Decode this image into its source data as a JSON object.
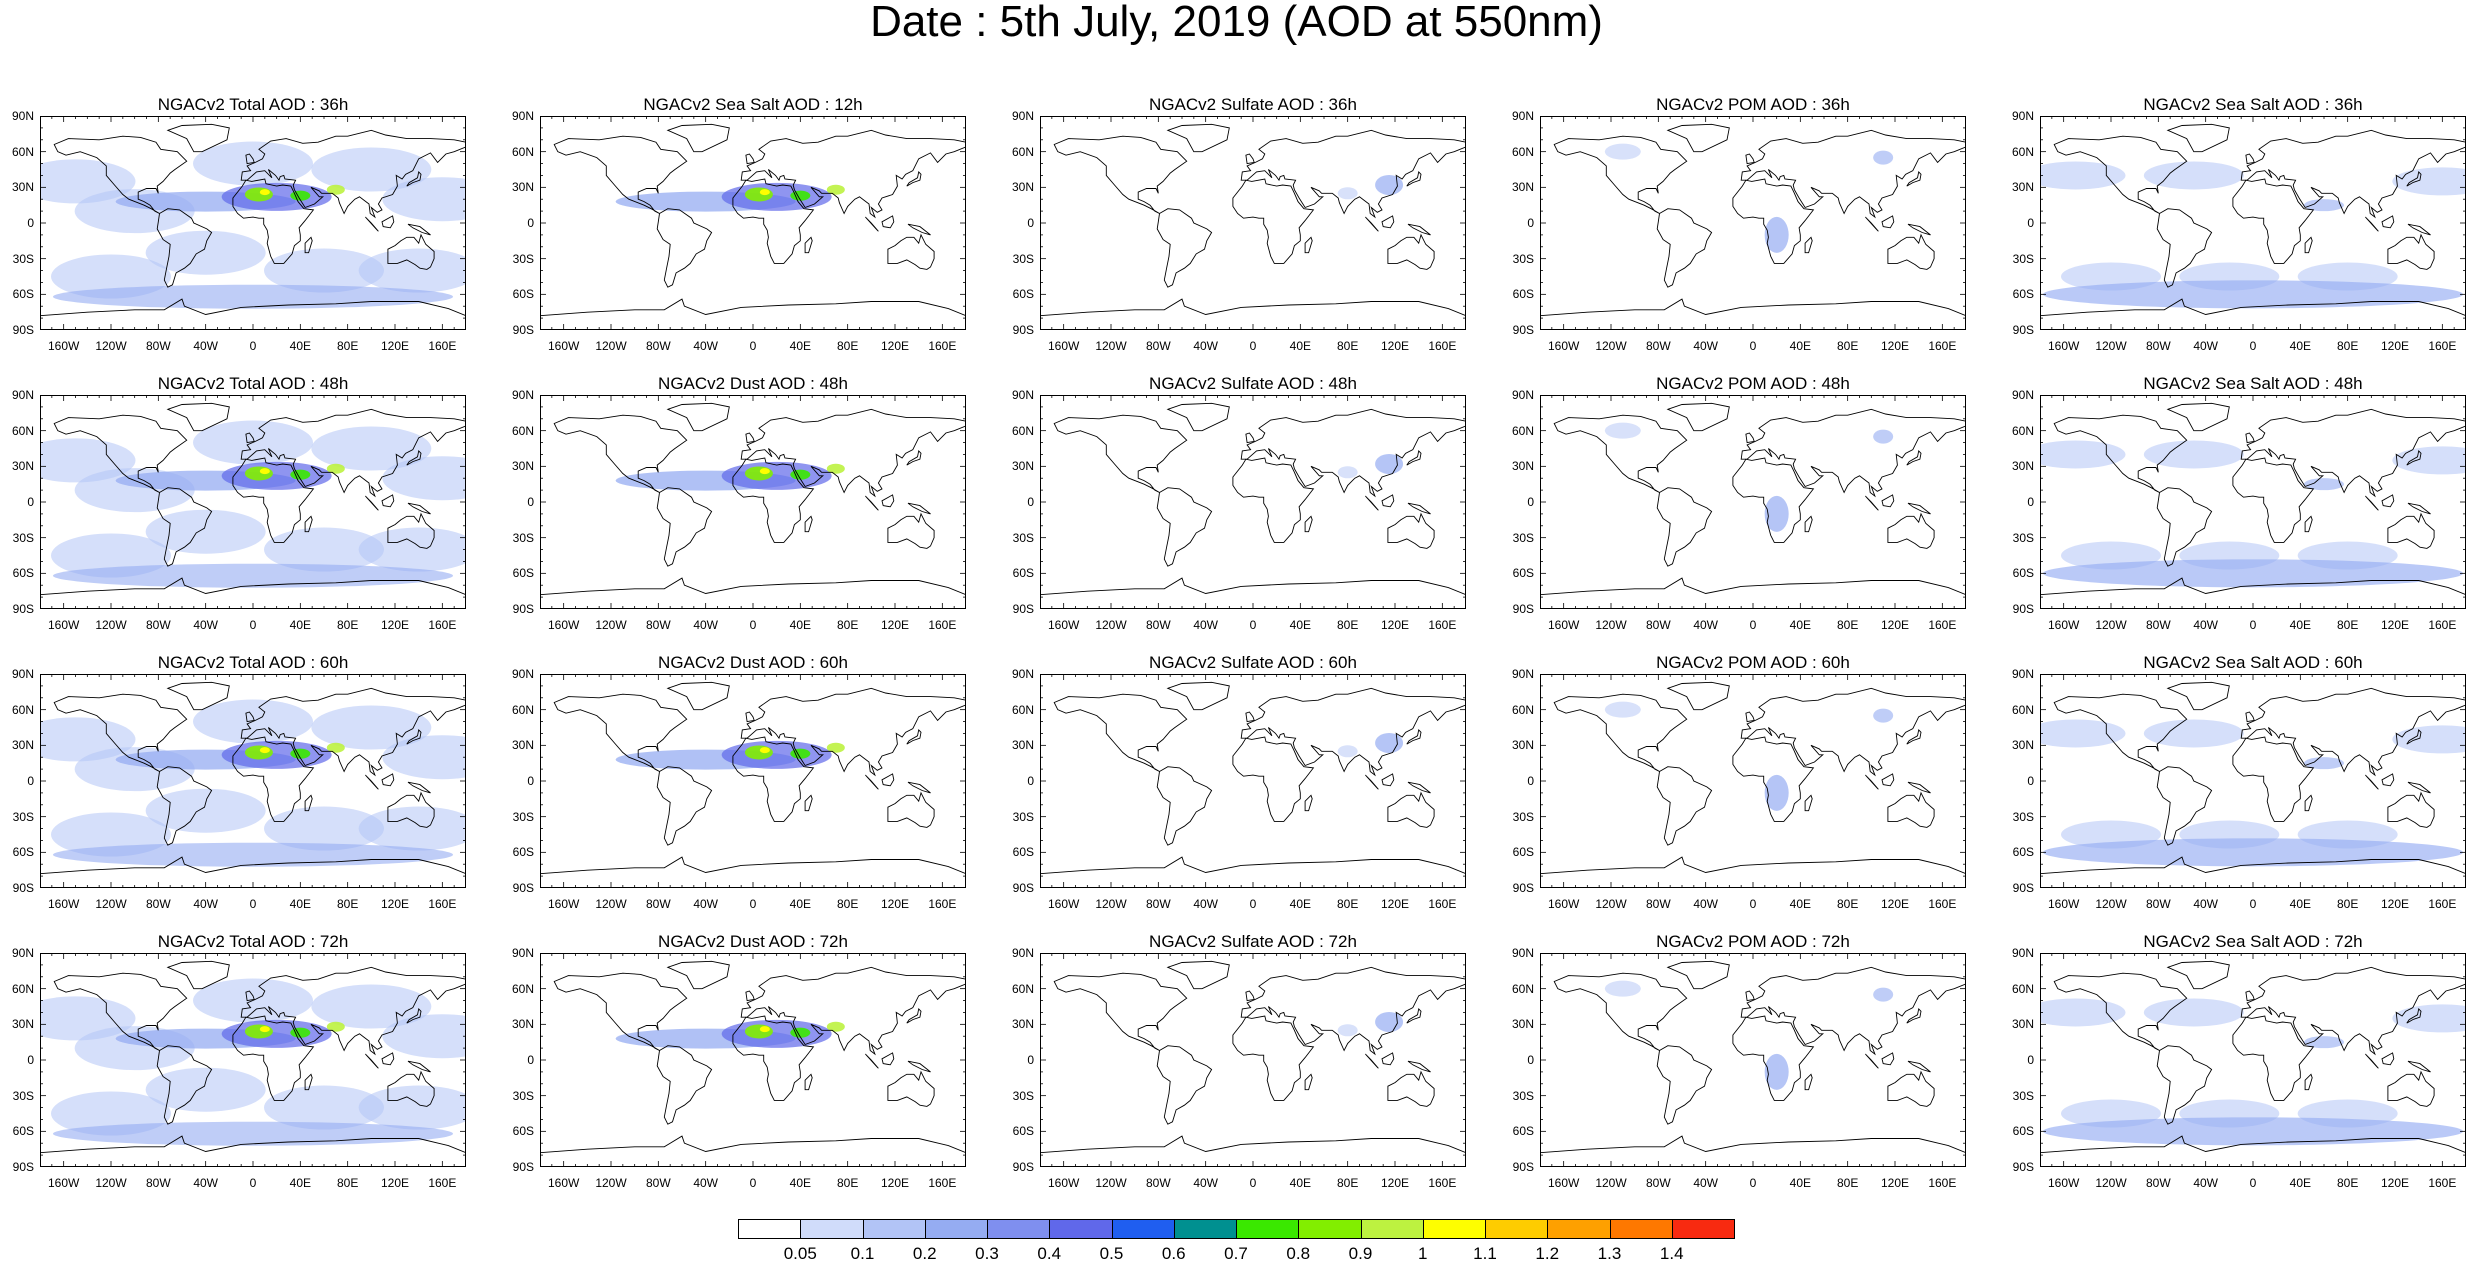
{
  "title": "Date : 5th July, 2019 (AOD at 550nm)",
  "panels": [
    [
      "NGACv2 Total AOD : 36h",
      "NGACv2 Sea Salt  AOD : 12h",
      "NGACv2 Sulfate AOD : 36h",
      "NGACv2 POM AOD : 36h",
      "NGACv2 Sea Salt AOD : 36h"
    ],
    [
      "NGACv2 Total AOD : 48h",
      "NGACv2 Dust AOD : 48h",
      "NGACv2 Sulfate AOD : 48h",
      "NGACv2 POM AOD : 48h",
      "NGACv2 Sea Salt AOD : 48h"
    ],
    [
      "NGACv2 Total AOD : 60h",
      "NGACv2 Dust AOD : 60h",
      "NGACv2 Sulfate AOD : 60h",
      "NGACv2 POM AOD : 60h",
      "NGACv2 Sea Salt AOD : 60h"
    ],
    [
      "NGACv2 Total AOD : 72h",
      "NGACv2 Dust AOD : 72h",
      "NGACv2 Sulfate AOD : 72h",
      "NGACv2 POM AOD : 72h",
      "NGACv2 Sea Salt  AOD : 72h"
    ]
  ],
  "lat_labels": [
    "90N",
    "60N",
    "30N",
    "0",
    "30S",
    "60S",
    "90S"
  ],
  "lon_labels": [
    "160W",
    "120W",
    "80W",
    "40W",
    "0",
    "40E",
    "80E",
    "120E",
    "160E"
  ],
  "colorbar": {
    "labels": [
      "0.05",
      "0.1",
      "0.2",
      "0.3",
      "0.4",
      "0.5",
      "0.6",
      "0.7",
      "0.8",
      "0.9",
      "1",
      "1.1",
      "1.2",
      "1.3",
      "1.4"
    ],
    "colors": [
      "#ffffff",
      "#d0dcfa",
      "#b2c4f6",
      "#95acf2",
      "#7f8fef",
      "#6068ea",
      "#1f5ef0",
      "#009090",
      "#3ae800",
      "#82ee00",
      "#bdf240",
      "#fefe00",
      "#fecc00",
      "#fea000",
      "#fe7800",
      "#f82a10"
    ]
  }
}
